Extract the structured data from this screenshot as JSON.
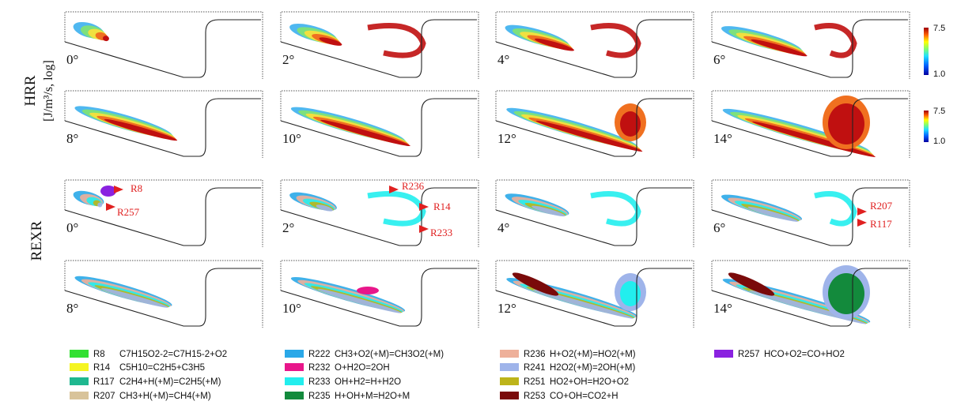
{
  "hrr_label": {
    "line1": "HRR",
    "line2": "[J/m³/s, log]"
  },
  "rexr_label": "REXR",
  "panels": [
    {
      "label": "0°"
    },
    {
      "label": "2°"
    },
    {
      "label": "4°"
    },
    {
      "label": "6°"
    },
    {
      "label": "8°"
    },
    {
      "label": "10°"
    },
    {
      "label": "12°"
    },
    {
      "label": "14°"
    },
    {
      "label": "0°"
    },
    {
      "label": "2°"
    },
    {
      "label": "4°"
    },
    {
      "label": "6°"
    },
    {
      "label": "8°"
    },
    {
      "label": "10°"
    },
    {
      "label": "12°"
    },
    {
      "label": "14°"
    }
  ],
  "colorbars": [
    {
      "max": "7.5",
      "min": "1.0"
    },
    {
      "max": "7.5",
      "min": "1.0"
    }
  ],
  "annotations": [
    {
      "text": "R8"
    },
    {
      "text": "R257"
    },
    {
      "text": "R236"
    },
    {
      "text": "R14"
    },
    {
      "text": "R233"
    },
    {
      "text": "R207"
    },
    {
      "text": "R117"
    }
  ],
  "legend": [
    {
      "code": "R8",
      "reaction": "C7H15O2-2=C7H15-2+O2",
      "color": "#33e033"
    },
    {
      "code": "R14",
      "reaction": "C5H10=C2H5+C3H5",
      "color": "#f5f522"
    },
    {
      "code": "R117",
      "reaction": "C2H4+H(+M)=C2H5(+M)",
      "color": "#1fb890"
    },
    {
      "code": "R207",
      "reaction": "CH3+H(+M)=CH4(+M)",
      "color": "#d8c39a"
    },
    {
      "code": "R222",
      "reaction": "CH3+O2(+M)=CH3O2(+M)",
      "color": "#2aa8e8"
    },
    {
      "code": "R232",
      "reaction": "O+H2O=2OH",
      "color": "#e8168a"
    },
    {
      "code": "R233",
      "reaction": "OH+H2=H+H2O",
      "color": "#22eeee"
    },
    {
      "code": "R235",
      "reaction": "H+OH+M=H2O+M",
      "color": "#138a3c"
    },
    {
      "code": "R236",
      "reaction": "H+O2(+M)=HO2(+M)",
      "color": "#eeb09a"
    },
    {
      "code": "R241",
      "reaction": "H2O2(+M)=2OH(+M)",
      "color": "#9fb4ea"
    },
    {
      "code": "R251",
      "reaction": "HO2+OH=H2O+O2",
      "color": "#bdb41a"
    },
    {
      "code": "R253",
      "reaction": "CO+OH=CO2+H",
      "color": "#7a0a0a"
    },
    {
      "code": "R257",
      "reaction": "HCO+O2=CO+HO2",
      "color": "#8a22e0"
    }
  ]
}
